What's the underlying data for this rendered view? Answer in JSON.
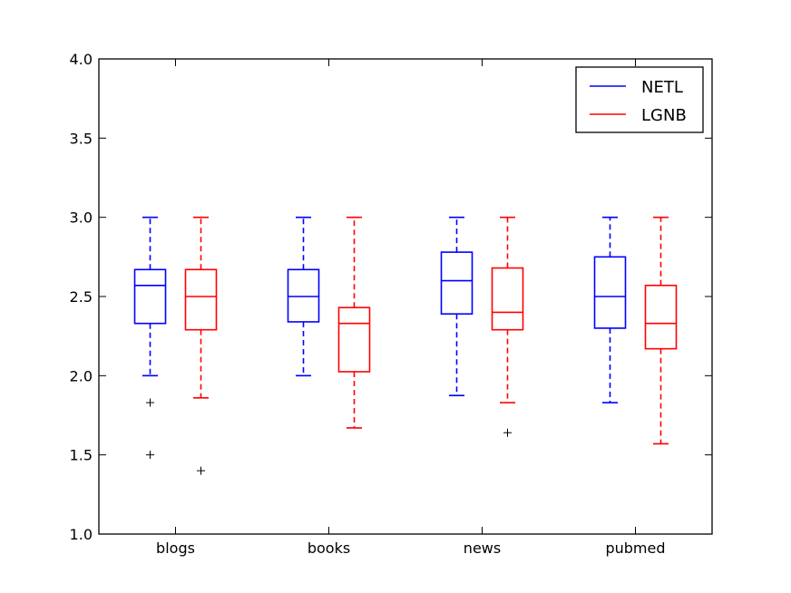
{
  "chart_data": {
    "type": "boxplot",
    "categories": [
      "blogs",
      "books",
      "news",
      "pubmed"
    ],
    "ylim": [
      1.0,
      4.0
    ],
    "yticks": [
      "1.0",
      "1.5",
      "2.0",
      "2.5",
      "3.0",
      "3.5",
      "4.0"
    ],
    "grid": false,
    "legend_position": "top-right",
    "series": [
      {
        "name": "NETL",
        "color": "#0000ff",
        "boxes": [
          {
            "whisker_low": 2.0,
            "q1": 2.33,
            "median": 2.57,
            "q3": 2.67,
            "whisker_high": 3.0,
            "outliers": [
              1.83,
              1.5
            ]
          },
          {
            "whisker_low": 2.0,
            "q1": 2.34,
            "median": 2.5,
            "q3": 2.67,
            "whisker_high": 3.0,
            "outliers": []
          },
          {
            "whisker_low": 1.875,
            "q1": 2.39,
            "median": 2.6,
            "q3": 2.78,
            "whisker_high": 3.0,
            "outliers": []
          },
          {
            "whisker_low": 1.83,
            "q1": 2.3,
            "median": 2.5,
            "q3": 2.75,
            "whisker_high": 3.0,
            "outliers": []
          }
        ]
      },
      {
        "name": "LGNB",
        "color": "#ff0000",
        "boxes": [
          {
            "whisker_low": 1.86,
            "q1": 2.29,
            "median": 2.5,
            "q3": 2.67,
            "whisker_high": 3.0,
            "outliers": [
              1.4
            ]
          },
          {
            "whisker_low": 1.67,
            "q1": 2.025,
            "median": 2.33,
            "q3": 2.43,
            "whisker_high": 3.0,
            "outliers": []
          },
          {
            "whisker_low": 1.83,
            "q1": 2.29,
            "median": 2.4,
            "q3": 2.68,
            "whisker_high": 3.0,
            "outliers": [
              1.64
            ]
          },
          {
            "whisker_low": 1.57,
            "q1": 2.17,
            "median": 2.33,
            "q3": 2.57,
            "whisker_high": 3.0,
            "outliers": []
          }
        ]
      }
    ]
  }
}
